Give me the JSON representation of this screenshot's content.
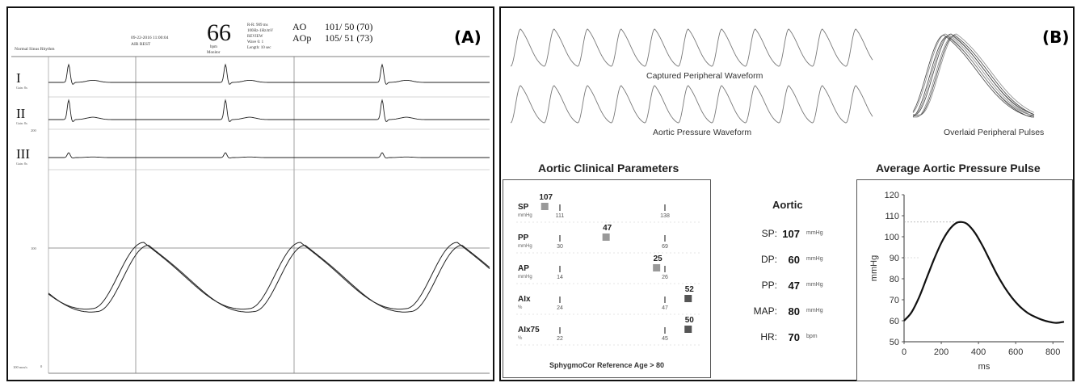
{
  "panel_a": {
    "label": "(A)",
    "header": {
      "rhythm": "Normal Sinus Rhythm",
      "date_line": "09-22-2016 11:00:04",
      "status_line": "AIR REST",
      "heart_rate": "66",
      "hr_unit": "bpm",
      "hr_mode": "Monitor",
      "rr_lines": [
        "R-R: 909 ms",
        "100Hz-1Hz/mV",
        "REVIEW",
        "Wave 6: 1",
        "Length: 10 sec"
      ],
      "ao_label": "AO",
      "ao_value": "101/ 50 (70)",
      "aop_label": "AOp",
      "aop_value": "105/ 51 (73)"
    },
    "leads": [
      "I",
      "II",
      "III"
    ],
    "gain": "Gain: 8x",
    "pressure_scale_top": "200",
    "pressure_scale_mid": "100",
    "pressure_scale_bottom": "0",
    "footer": "100 mm/s"
  },
  "panel_b": {
    "label": "(B)",
    "captured_label": "Captured Peripheral Waveform",
    "aortic_wave_label": "Aortic Pressure Waveform",
    "overlaid_label": "Overlaid Peripheral Pulses",
    "params_title": "Aortic Clinical Parameters",
    "params_footer": "SphygmoCor Reference Age > 80",
    "params": [
      {
        "name": "SP",
        "unit": "mmHg",
        "value": "107",
        "low": "111",
        "high": "138"
      },
      {
        "name": "PP",
        "unit": "mmHg",
        "value": "47",
        "low": "30",
        "high": "69"
      },
      {
        "name": "AP",
        "unit": "mmHg",
        "value": "25",
        "low": "14",
        "high": "26"
      },
      {
        "name": "AIx",
        "unit": "%",
        "value": "52",
        "low": "24",
        "high": "47"
      },
      {
        "name": "AIx75",
        "unit": "%",
        "value": "50",
        "low": "22",
        "high": "45"
      }
    ],
    "aortic_title": "Aortic",
    "aortic_values": [
      {
        "label": "SP:",
        "value": "107",
        "unit": "mmHg"
      },
      {
        "label": "DP:",
        "value": "60",
        "unit": "mmHg"
      },
      {
        "label": "PP:",
        "value": "47",
        "unit": "mmHg"
      },
      {
        "label": "MAP:",
        "value": "80",
        "unit": "mmHg"
      },
      {
        "label": "HR:",
        "value": "70",
        "unit": "bpm"
      }
    ]
  },
  "chart_data": [
    {
      "type": "line",
      "title": "Average Aortic Pressure Pulse",
      "xlabel": "ms",
      "ylabel": "mmHg",
      "xlim": [
        0,
        860
      ],
      "ylim": [
        50,
        120
      ],
      "xticks": [
        0,
        200,
        400,
        600,
        800
      ],
      "yticks": [
        50,
        60,
        70,
        80,
        90,
        100,
        110,
        120
      ],
      "reference_lines": [
        107
      ],
      "series": [
        {
          "x": [
            0,
            40,
            80,
            120,
            160,
            200,
            240,
            280,
            310,
            340,
            380,
            420,
            460,
            500,
            540,
            580,
            620,
            660,
            700,
            740,
            780,
            820,
            860
          ],
          "y": [
            60,
            64,
            71,
            80,
            89,
            97,
            103,
            106.5,
            107,
            106,
            102,
            96,
            89,
            82,
            76,
            71,
            67,
            64,
            62,
            60.5,
            59.5,
            59,
            59.5
          ]
        }
      ]
    }
  ]
}
